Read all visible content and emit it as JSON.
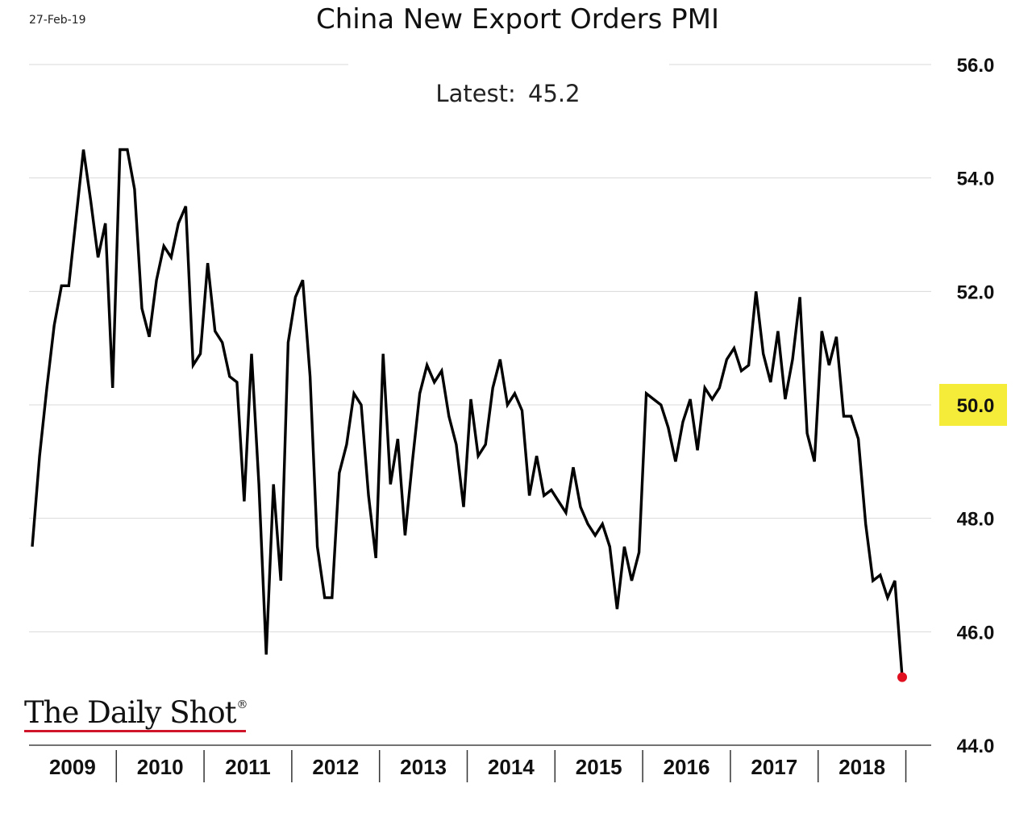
{
  "header": {
    "date": "27-Feb-19",
    "title": "China New Export Orders PMI",
    "latest_label": "Latest:",
    "latest_value": "45.2"
  },
  "logo": {
    "text": "The Daily Shot",
    "mark": "®"
  },
  "colors": {
    "line": "#000000",
    "latest_point": "#e01020",
    "highlight": "#f5ec3a",
    "grid": "#d9d9d9"
  },
  "chart_data": {
    "type": "line",
    "title": "China New Export Orders PMI",
    "ylim": [
      44.0,
      56.0
    ],
    "y_ticks": [
      "44.0",
      "46.0",
      "48.0",
      "50.0",
      "52.0",
      "54.0",
      "56.0"
    ],
    "highlighted_tick": "50.0",
    "x_ticks": [
      "2009",
      "2010",
      "2011",
      "2012",
      "2013",
      "2014",
      "2015",
      "2016",
      "2017",
      "2018"
    ],
    "x_start": "2009-01",
    "grid": "horizontal",
    "series": [
      {
        "values": [
          47.5,
          49.1,
          50.3,
          51.4,
          52.1,
          52.1,
          53.3,
          54.5,
          53.6,
          52.6,
          53.2,
          50.3,
          54.5,
          54.5,
          53.8,
          51.7,
          51.2,
          52.2,
          52.8,
          52.6,
          53.2,
          53.5,
          50.7,
          50.9,
          52.5,
          51.3,
          51.1,
          50.5,
          50.4,
          48.3,
          50.9,
          48.6,
          45.6,
          48.6,
          46.9,
          51.1,
          51.9,
          52.2,
          50.5,
          47.5,
          46.6,
          46.6,
          48.8,
          49.3,
          50.2,
          50.0,
          48.4,
          47.3,
          50.9,
          48.6,
          49.4,
          47.7,
          49.0,
          50.2,
          50.7,
          50.4,
          50.6,
          49.8,
          49.3,
          48.2,
          50.1,
          49.1,
          49.3,
          50.3,
          50.8,
          50.0,
          50.2,
          49.9,
          48.4,
          49.1,
          48.4,
          48.5,
          48.3,
          48.1,
          48.9,
          48.2,
          47.9,
          47.7,
          47.9,
          47.5,
          46.4,
          47.5,
          46.9,
          47.4,
          50.2,
          50.1,
          50.0,
          49.6,
          49.0,
          49.7,
          50.1,
          49.2,
          50.3,
          50.1,
          50.3,
          50.8,
          51.0,
          50.6,
          50.7,
          52.0,
          50.9,
          50.4,
          51.3,
          50.1,
          50.8,
          51.9,
          49.5,
          49.0,
          51.3,
          50.7,
          51.2,
          49.8,
          49.8,
          49.4,
          47.9,
          46.9,
          47.0,
          46.6,
          46.9,
          45.2
        ]
      }
    ]
  }
}
